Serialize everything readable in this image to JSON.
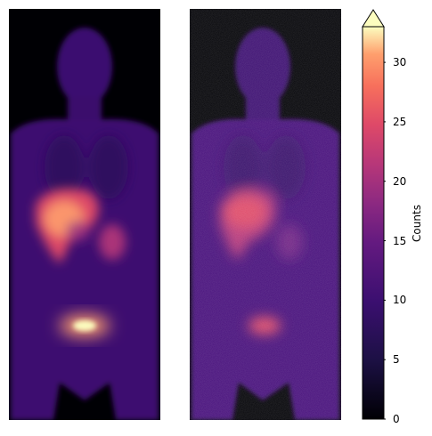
{
  "images": [
    {
      "name": "scan-smooth",
      "grain": 0.0
    },
    {
      "name": "scan-noisy",
      "grain": 1.0
    }
  ],
  "colorbar": {
    "label": "Counts",
    "min": 0,
    "max": 33,
    "extend": "max",
    "ticks": [
      0,
      5,
      10,
      15,
      20,
      25,
      30
    ],
    "colormap": "magma",
    "colors": {
      "black": "#000004",
      "dark_purple": "#3b0f70",
      "purple": "#8c2981",
      "magenta": "#b73779",
      "red": "#de4968",
      "orange": "#fe9f6d",
      "cream": "#fcfdbf"
    }
  }
}
